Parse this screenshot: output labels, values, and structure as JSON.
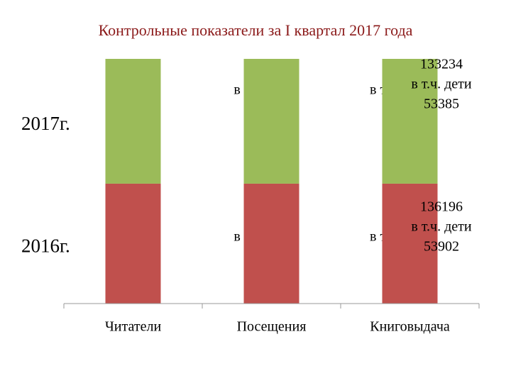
{
  "chart_data": {
    "type": "stacked_bar",
    "title": "Контрольные показатели за I квартал 2017 года",
    "categories": [
      "Читатели",
      "Посещения",
      "Книговыдача"
    ],
    "series": [
      {
        "name": "2016г.",
        "color": "#c0504d",
        "values": [
          49,
          49,
          49
        ]
      },
      {
        "name": "2017г.",
        "color": "#9bbb59",
        "values": [
          51,
          51,
          51
        ]
      }
    ],
    "ylim": [
      0,
      100
    ],
    "annotations": [
      {
        "lines": [
          "в т.ч. дети"
        ]
      },
      {
        "lines": [
          "в т.ч."
        ]
      },
      {
        "lines": [
          "в т.ч. дети"
        ]
      },
      {
        "lines": [
          "в т.ч."
        ]
      },
      {
        "lines": [
          "133234",
          "в т.ч. дети",
          "53385"
        ]
      },
      {
        "lines": [
          "136196",
          "в т.ч. дети",
          "53902"
        ]
      }
    ]
  }
}
